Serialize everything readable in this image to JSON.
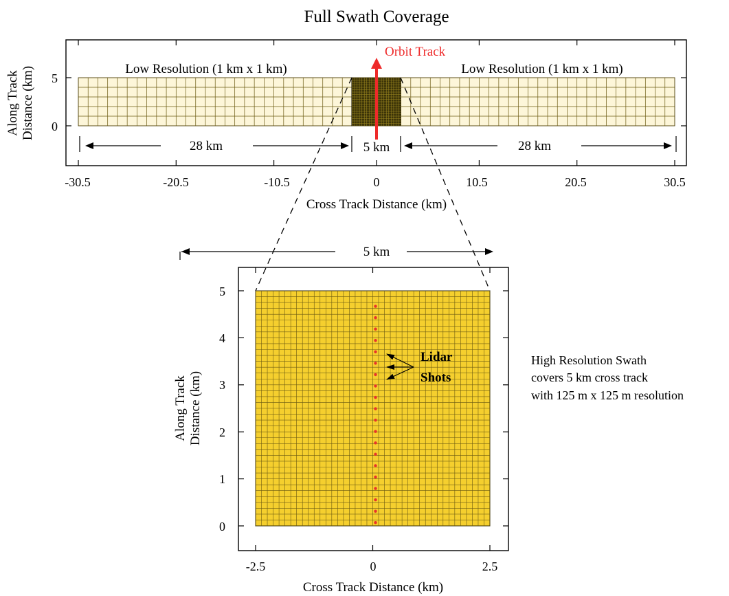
{
  "title": "Full Swath Coverage",
  "top_panel": {
    "x_ticks": [
      "-30.5",
      "-20.5",
      "-10.5",
      "0",
      "10.5",
      "20.5",
      "30.5"
    ],
    "y_ticks": [
      "5",
      "0"
    ],
    "xlabel": "Cross Track Distance (km)",
    "ylabel_line1": "Along Track",
    "ylabel_line2": "Distance (km)",
    "low_res_left_label": "Low Resolution (1 km x 1 km)",
    "low_res_right_label": "Low Resolution (1 km x 1 km)",
    "orbit_track_label": "Orbit Track",
    "left_span_label": "28 km",
    "center_span_label": "5 km",
    "right_span_label": "28 km",
    "data": {
      "x_range_km": [
        -30.5,
        30.5
      ],
      "y_range_km": [
        0,
        5
      ],
      "low_res_cell_km": 1,
      "high_res_cell_km": 0.125,
      "high_res_band_km": [
        -2.5,
        2.5
      ]
    }
  },
  "zoom_span_label": "5 km",
  "bottom_panel": {
    "x_ticks": [
      "-2.5",
      "0",
      "2.5"
    ],
    "y_ticks": [
      "5",
      "4",
      "3",
      "2",
      "1",
      "0"
    ],
    "xlabel": "Cross Track Distance (km)",
    "ylabel_line1": "Along Track",
    "ylabel_line2": "Distance (km)",
    "lidar_label_line1": "Lidar",
    "lidar_label_line2": "Shots",
    "data": {
      "x_range_km": [
        -2.5,
        2.5
      ],
      "y_range_km": [
        0,
        5
      ],
      "cell_km": 0.125,
      "lidar_shot_x_km": 0
    }
  },
  "description_lines": [
    "High Resolution Swath",
    "covers 5 km cross track",
    "with 125 m x 125 m resolution"
  ],
  "colors": {
    "grid_fill": "#f5cf2e",
    "grid_line": "#6b5a12",
    "dense_fill": "#3c3408",
    "orbit_arrow": "#ee2a2a",
    "lidar_dot": "#e8332b"
  }
}
